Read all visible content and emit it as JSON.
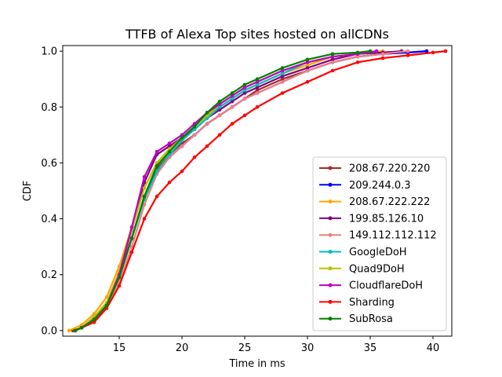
{
  "chart_data": {
    "type": "line",
    "title": "TTFB of Alexa Top sites hosted on allCDNs",
    "xlabel": "Time in ms",
    "ylabel": "CDF",
    "xlim": [
      10.5,
      41.5
    ],
    "ylim": [
      -0.02,
      1.02
    ],
    "xticks": [
      15,
      20,
      25,
      30,
      35,
      40
    ],
    "yticks": [
      0.0,
      0.2,
      0.4,
      0.6,
      0.8,
      1.0
    ],
    "xtick_labels": [
      "15",
      "20",
      "25",
      "30",
      "35",
      "40"
    ],
    "ytick_labels": [
      "0.0",
      "0.2",
      "0.4",
      "0.6",
      "0.8",
      "1.0"
    ],
    "grid": false,
    "legend_position": "lower-right",
    "series": [
      {
        "name": "208.67.220.220",
        "color": "#a52a2a",
        "x": [
          11.3,
          12.0,
          13.0,
          14.0,
          15.0,
          16.0,
          17.0,
          18.0,
          19.0,
          20.0,
          21.0,
          22.0,
          23.0,
          24.0,
          25.0,
          26.0,
          28.0,
          30.0,
          32.0,
          34.0,
          36.0,
          38.0,
          39.5
        ],
        "y": [
          0.0,
          0.01,
          0.04,
          0.09,
          0.19,
          0.33,
          0.48,
          0.58,
          0.63,
          0.67,
          0.7,
          0.74,
          0.77,
          0.8,
          0.83,
          0.86,
          0.9,
          0.93,
          0.96,
          0.98,
          0.99,
          0.995,
          1.0
        ]
      },
      {
        "name": "209.244.0.3",
        "color": "#0000ff",
        "x": [
          11.5,
          12.0,
          13.0,
          14.0,
          15.0,
          16.0,
          17.0,
          18.0,
          19.0,
          20.0,
          21.0,
          22.0,
          23.0,
          24.0,
          25.0,
          26.0,
          28.0,
          30.0,
          32.0,
          34.0,
          36.0,
          38.0,
          39.5
        ],
        "y": [
          0.0,
          0.01,
          0.04,
          0.09,
          0.19,
          0.33,
          0.48,
          0.57,
          0.62,
          0.66,
          0.7,
          0.74,
          0.77,
          0.8,
          0.83,
          0.85,
          0.89,
          0.93,
          0.96,
          0.98,
          0.99,
          0.995,
          1.0
        ]
      },
      {
        "name": "208.67.222.222",
        "color": "#ffa500",
        "x": [
          11.0,
          12.0,
          13.0,
          14.0,
          15.0,
          16.0,
          17.0,
          18.0,
          19.0,
          20.0,
          21.0,
          22.0,
          23.0,
          24.0,
          25.0,
          26.0,
          28.0,
          30.0,
          32.0,
          34.0,
          36.0
        ],
        "y": [
          0.0,
          0.02,
          0.06,
          0.12,
          0.23,
          0.37,
          0.51,
          0.6,
          0.65,
          0.69,
          0.73,
          0.77,
          0.8,
          0.83,
          0.86,
          0.88,
          0.92,
          0.95,
          0.98,
          0.99,
          1.0
        ]
      },
      {
        "name": "199.85.126.10",
        "color": "#800080",
        "x": [
          11.5,
          12.0,
          13.0,
          14.0,
          15.0,
          16.0,
          17.0,
          18.0,
          19.0,
          20.0,
          21.0,
          22.0,
          23.0,
          24.0,
          25.0,
          26.0,
          28.0,
          30.0,
          32.0,
          34.0,
          36.0,
          37.5
        ],
        "y": [
          0.0,
          0.01,
          0.04,
          0.09,
          0.2,
          0.36,
          0.53,
          0.63,
          0.66,
          0.69,
          0.72,
          0.76,
          0.79,
          0.82,
          0.85,
          0.87,
          0.91,
          0.94,
          0.97,
          0.99,
          0.995,
          1.0
        ]
      },
      {
        "name": "149.112.112.112",
        "color": "#f08080",
        "x": [
          11.5,
          12.0,
          13.0,
          14.0,
          15.0,
          16.0,
          17.0,
          18.0,
          19.0,
          20.0,
          21.0,
          22.0,
          23.0,
          24.0,
          25.0,
          26.0,
          28.0,
          30.0,
          32.0,
          34.0,
          36.0,
          38.0
        ],
        "y": [
          0.0,
          0.01,
          0.03,
          0.08,
          0.17,
          0.3,
          0.45,
          0.56,
          0.62,
          0.66,
          0.7,
          0.74,
          0.77,
          0.8,
          0.83,
          0.85,
          0.89,
          0.93,
          0.96,
          0.98,
          0.99,
          1.0
        ]
      },
      {
        "name": "GoogleDoH",
        "color": "#00bfbf",
        "x": [
          11.5,
          12.0,
          13.0,
          14.0,
          15.0,
          16.0,
          17.0,
          18.0,
          19.0,
          20.0,
          21.0,
          22.0,
          23.0,
          24.0,
          25.0,
          26.0,
          28.0,
          30.0,
          32.0,
          34.0,
          35.5
        ],
        "y": [
          0.0,
          0.01,
          0.04,
          0.09,
          0.19,
          0.33,
          0.47,
          0.57,
          0.63,
          0.68,
          0.72,
          0.76,
          0.8,
          0.83,
          0.86,
          0.88,
          0.92,
          0.96,
          0.98,
          0.99,
          1.0
        ]
      },
      {
        "name": "Quad9DoH",
        "color": "#bfbf00",
        "x": [
          11.5,
          12.0,
          13.0,
          14.0,
          15.0,
          16.0,
          17.0,
          18.0,
          19.0,
          20.0,
          21.0,
          22.0,
          23.0,
          24.0,
          25.0,
          26.0,
          28.0,
          30.0,
          32.0,
          34.0,
          35.5
        ],
        "y": [
          0.0,
          0.01,
          0.05,
          0.1,
          0.21,
          0.36,
          0.51,
          0.6,
          0.65,
          0.69,
          0.73,
          0.77,
          0.81,
          0.84,
          0.87,
          0.89,
          0.93,
          0.96,
          0.98,
          0.99,
          1.0
        ]
      },
      {
        "name": "CloudflareDoH",
        "color": "#bf00bf",
        "x": [
          11.5,
          12.0,
          13.0,
          14.0,
          15.0,
          16.0,
          17.0,
          18.0,
          19.0,
          20.0,
          21.0,
          22.0,
          23.0,
          24.0,
          25.0,
          26.0,
          28.0,
          30.0,
          32.0,
          34.0,
          35.5
        ],
        "y": [
          0.0,
          0.01,
          0.04,
          0.09,
          0.2,
          0.37,
          0.55,
          0.64,
          0.67,
          0.7,
          0.74,
          0.78,
          0.81,
          0.84,
          0.87,
          0.89,
          0.93,
          0.96,
          0.98,
          0.99,
          1.0
        ]
      },
      {
        "name": "Sharding",
        "color": "#ff0000",
        "x": [
          11.5,
          12.0,
          13.0,
          14.0,
          15.0,
          16.0,
          17.0,
          18.0,
          19.0,
          20.0,
          21.0,
          22.0,
          23.0,
          24.0,
          25.0,
          26.0,
          28.0,
          30.0,
          32.0,
          34.0,
          36.0,
          38.0,
          40.0,
          41.0
        ],
        "y": [
          0.0,
          0.01,
          0.03,
          0.08,
          0.16,
          0.28,
          0.4,
          0.48,
          0.53,
          0.57,
          0.62,
          0.66,
          0.7,
          0.74,
          0.77,
          0.8,
          0.85,
          0.89,
          0.93,
          0.96,
          0.975,
          0.985,
          0.995,
          1.0
        ]
      },
      {
        "name": "SubRosa",
        "color": "#008000",
        "x": [
          11.5,
          12.0,
          13.0,
          14.0,
          15.0,
          16.0,
          17.0,
          18.0,
          19.0,
          20.0,
          21.0,
          22.0,
          23.0,
          24.0,
          25.0,
          26.0,
          28.0,
          30.0,
          32.0,
          34.0,
          35.0
        ],
        "y": [
          0.0,
          0.01,
          0.04,
          0.09,
          0.19,
          0.33,
          0.48,
          0.59,
          0.64,
          0.69,
          0.73,
          0.78,
          0.82,
          0.85,
          0.88,
          0.9,
          0.94,
          0.97,
          0.99,
          0.995,
          1.0
        ]
      }
    ]
  }
}
